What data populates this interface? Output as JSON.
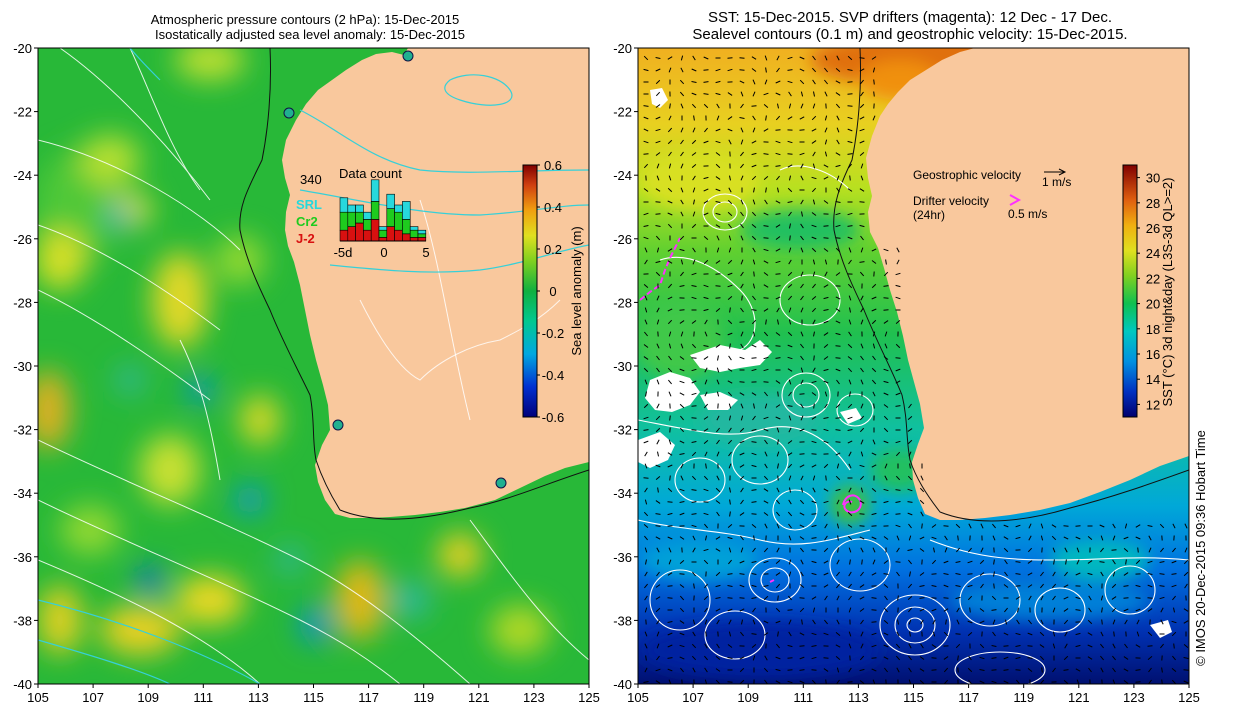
{
  "left_panel": {
    "title_line1": "Atmospheric pressure contours (2 hPa): 15-Dec-2015",
    "title_line2": "Isostatically adjusted sea level anomaly: 15-Dec-2015",
    "lat_ticks": [
      "-20",
      "-22",
      "-24",
      "-26",
      "-28",
      "-30",
      "-32",
      "-34",
      "-36",
      "-38",
      "-40"
    ],
    "lon_ticks": [
      "105",
      "107",
      "109",
      "111",
      "113",
      "115",
      "117",
      "119",
      "121",
      "123",
      "125"
    ],
    "colorbar": {
      "label": "Sea level anomaly (m)",
      "ticks": [
        "0.6",
        "0.4",
        "0.2",
        "0",
        "-0.2",
        "-0.4",
        "-0.6"
      ],
      "range": [
        -0.6,
        0.6
      ]
    },
    "inset": {
      "title": "Data count",
      "count": "340",
      "legend": [
        {
          "label": "SRL",
          "color": "#27d8dc"
        },
        {
          "label": "Cr2",
          "color": "#1ecb1e"
        },
        {
          "label": "J-2",
          "color": "#d81010"
        }
      ],
      "x_ticks": [
        "-5d",
        "0",
        "5"
      ],
      "bars": [
        {
          "j2": 3,
          "cr2": 5,
          "srl": 4
        },
        {
          "j2": 4,
          "cr2": 4,
          "srl": 2
        },
        {
          "j2": 5,
          "cr2": 3,
          "srl": 2
        },
        {
          "j2": 3,
          "cr2": 3,
          "srl": 2
        },
        {
          "j2": 6,
          "cr2": 5,
          "srl": 6
        },
        {
          "j2": 1,
          "cr2": 2,
          "srl": 1
        },
        {
          "j2": 4,
          "cr2": 5,
          "srl": 4
        },
        {
          "j2": 3,
          "cr2": 5,
          "srl": 2
        },
        {
          "j2": 2,
          "cr2": 4,
          "srl": 5
        },
        {
          "j2": 1,
          "cr2": 2,
          "srl": 1
        },
        {
          "j2": 1,
          "cr2": 1,
          "srl": 1
        }
      ]
    }
  },
  "right_panel": {
    "title_line1": "SST: 15-Dec-2015. SVP drifters (magenta): 12 Dec - 17 Dec.",
    "title_line2": "Sealevel contours (0.1 m) and geostrophic velocity: 15-Dec-2015.",
    "lat_ticks": [
      "-20",
      "-22",
      "-24",
      "-26",
      "-28",
      "-30",
      "-32",
      "-34",
      "-36",
      "-38",
      "-40"
    ],
    "lon_ticks": [
      "105",
      "107",
      "109",
      "111",
      "113",
      "115",
      "117",
      "119",
      "121",
      "123",
      "125"
    ],
    "colorbar": {
      "label": "SST (°C) 3d night&day (L3S-3d QL>=2)",
      "ticks": [
        "30",
        "28",
        "26",
        "24",
        "22",
        "20",
        "18",
        "16",
        "14",
        "12"
      ],
      "range": [
        11,
        31
      ]
    },
    "legend": {
      "geo_label": "Geostrophic velocity",
      "geo_speed": "1 m/s",
      "drifter_label": "Drifter velocity",
      "drifter_period": "(24hr)",
      "drifter_speed": "0.5 m/s"
    }
  },
  "credit": "© IMOS 20-Dec-2015 09:36 Hobart Time",
  "colors": {
    "land": "#f9c89d",
    "cyan_contour": "#36d0d8",
    "drifter": "#ff30ff"
  }
}
